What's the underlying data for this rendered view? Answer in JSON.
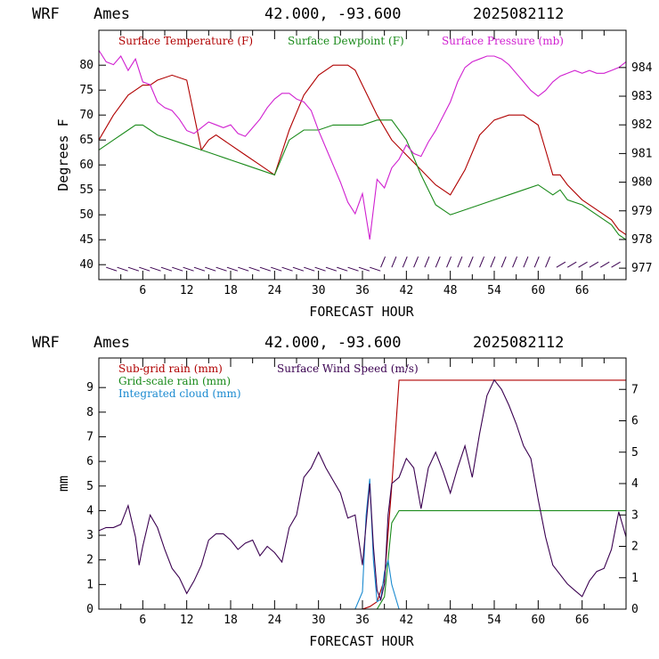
{
  "charts": [
    {
      "header": {
        "model": "WRF",
        "site": "Ames",
        "coords": "42.000, -93.600",
        "run": "2025082112"
      },
      "xlabel": "FORECAST HOUR",
      "ylabel": "Degrees F",
      "x_ticks": [
        "6",
        "12",
        "18",
        "24",
        "30",
        "36",
        "42",
        "48",
        "54",
        "60",
        "66"
      ],
      "y_left_ticks": [
        "40",
        "45",
        "50",
        "55",
        "60",
        "65",
        "70",
        "75",
        "80"
      ],
      "y_right_ticks": [
        "977",
        "978",
        "979",
        "980",
        "981",
        "982",
        "983",
        "984"
      ],
      "legend": [
        {
          "label": "Surface Temperature (F)",
          "color": "#b00000"
        },
        {
          "label": "Surface Dewpoint (F)",
          "color": "#1a8a1a"
        },
        {
          "label": "Surface Pressure (mb)",
          "color": "#d020d0"
        }
      ]
    },
    {
      "header": {
        "model": "WRF",
        "site": "Ames",
        "coords": "42.000, -93.600",
        "run": "2025082112"
      },
      "xlabel": "FORECAST HOUR",
      "ylabel": "mm",
      "x_ticks": [
        "6",
        "12",
        "18",
        "24",
        "30",
        "36",
        "42",
        "48",
        "54",
        "60",
        "66"
      ],
      "y_left_ticks": [
        "0",
        "1",
        "2",
        "3",
        "4",
        "5",
        "6",
        "7",
        "8",
        "9"
      ],
      "y_right_ticks": [
        "0",
        "1",
        "2",
        "3",
        "4",
        "5",
        "6",
        "7"
      ],
      "legend": [
        {
          "label": "Sub-grid rain (mm)",
          "color": "#b00000"
        },
        {
          "label": "Surface Wind Speed (m/s)",
          "color": "#3a0050"
        },
        {
          "label": "Grid-scale rain (mm)",
          "color": "#1a8a1a"
        },
        {
          "label": "Integrated cloud (mm)",
          "color": "#1a8ad0"
        }
      ]
    }
  ],
  "chart_data": [
    {
      "type": "line",
      "xlim": [
        0,
        72
      ],
      "ylim": [
        37,
        87
      ],
      "y2lim": [
        976.6,
        985.3
      ],
      "series": [
        {
          "name": "Surface Temperature (F)",
          "color": "#b00000",
          "axis": "left",
          "x": [
            0,
            2,
            4,
            5,
            6,
            7,
            8,
            10,
            12,
            13,
            14,
            15,
            16,
            18,
            20,
            22,
            24,
            26,
            28,
            30,
            32,
            34,
            35,
            36,
            38,
            40,
            42,
            44,
            46,
            48,
            50,
            52,
            54,
            56,
            58,
            60,
            61,
            62,
            63,
            64,
            66,
            68,
            70,
            71,
            72
          ],
          "y": [
            65,
            70,
            74,
            75,
            76,
            76,
            77,
            78,
            77,
            70,
            63,
            65,
            66,
            64,
            62,
            60,
            58,
            67,
            74,
            78,
            80,
            80,
            79,
            76,
            70,
            65,
            62,
            59,
            56,
            54,
            59,
            66,
            69,
            70,
            70,
            68,
            63,
            58,
            58,
            56,
            53,
            51,
            49,
            47,
            46
          ]
        },
        {
          "name": "Surface Dewpoint (F)",
          "color": "#1a8a1a",
          "axis": "left",
          "x": [
            0,
            2,
            4,
            5,
            6,
            7,
            8,
            10,
            12,
            14,
            16,
            18,
            20,
            22,
            24,
            26,
            28,
            30,
            32,
            34,
            36,
            38,
            40,
            42,
            44,
            46,
            48,
            50,
            52,
            54,
            56,
            58,
            60,
            61,
            62,
            63,
            64,
            66,
            68,
            70,
            71,
            72
          ],
          "y": [
            63,
            65,
            67,
            68,
            68,
            67,
            66,
            65,
            64,
            63,
            62,
            61,
            60,
            59,
            58,
            65,
            67,
            67,
            68,
            68,
            68,
            69,
            69,
            65,
            58,
            52,
            50,
            51,
            52,
            53,
            54,
            55,
            56,
            55,
            54,
            55,
            53,
            52,
            50,
            48,
            46,
            45
          ]
        },
        {
          "name": "Surface Pressure (mb)",
          "color": "#d020d0",
          "axis": "right",
          "x": [
            0,
            1,
            2,
            3,
            4,
            5,
            6,
            7,
            8,
            9,
            10,
            11,
            12,
            13,
            14,
            15,
            16,
            17,
            18,
            19,
            20,
            21,
            22,
            23,
            24,
            25,
            26,
            27,
            28,
            29,
            30,
            31,
            32,
            33,
            34,
            35,
            36,
            37,
            38,
            39,
            40,
            41,
            42,
            43,
            44,
            45,
            46,
            47,
            48,
            49,
            50,
            51,
            52,
            53,
            54,
            55,
            56,
            57,
            58,
            59,
            60,
            61,
            62,
            63,
            64,
            65,
            66,
            67,
            68,
            69,
            70,
            71,
            72
          ],
          "y": [
            984.6,
            984.2,
            984.1,
            984.4,
            983.9,
            984.3,
            983.5,
            983.4,
            982.8,
            982.6,
            982.5,
            982.2,
            981.8,
            981.7,
            981.9,
            982.1,
            982.0,
            981.9,
            982.0,
            981.7,
            981.6,
            981.9,
            982.2,
            982.6,
            982.9,
            983.1,
            983.1,
            982.9,
            982.8,
            982.5,
            981.8,
            981.2,
            980.6,
            980.0,
            979.3,
            978.9,
            979.6,
            978.0,
            980.1,
            979.8,
            980.5,
            980.8,
            981.3,
            981.0,
            980.9,
            981.4,
            981.8,
            982.3,
            982.8,
            983.5,
            984.0,
            984.2,
            984.3,
            984.4,
            984.4,
            984.3,
            984.1,
            983.8,
            983.5,
            983.2,
            983.0,
            983.2,
            983.5,
            983.7,
            983.8,
            983.9,
            983.8,
            983.9,
            983.8,
            983.8,
            983.9,
            984.0,
            984.2
          ]
        }
      ],
      "wind_barbs": {
        "x_start": 1,
        "x_step": 1.5,
        "count": 47
      }
    },
    {
      "type": "line",
      "xlim": [
        0,
        72
      ],
      "ylim": [
        0,
        10.2
      ],
      "y2lim": [
        0,
        8.0
      ],
      "series": [
        {
          "name": "Sub-grid rain (mm)",
          "color": "#b00000",
          "axis": "left",
          "x": [
            0,
            36,
            37,
            38,
            39,
            40,
            41,
            72
          ],
          "y": [
            0,
            0,
            0.1,
            0.3,
            1.2,
            5.0,
            9.3,
            9.3
          ]
        },
        {
          "name": "Grid-scale rain (mm)",
          "color": "#1a8a1a",
          "axis": "left",
          "x": [
            0,
            38,
            39,
            40,
            41,
            72
          ],
          "y": [
            0,
            0,
            0.5,
            3.5,
            4.0,
            4.0
          ]
        },
        {
          "name": "Integrated cloud (mm)",
          "color": "#1a8ad0",
          "axis": "left",
          "x": [
            0,
            35,
            36,
            36.5,
            37,
            37.5,
            38,
            38.5,
            39,
            39.5,
            40,
            41,
            72
          ],
          "y": [
            0,
            0,
            0.7,
            3.8,
            5.3,
            2.0,
            0.3,
            0.4,
            1.5,
            2.0,
            1.0,
            0,
            0
          ]
        },
        {
          "name": "Surface Wind Speed (m/s)",
          "color": "#3a0050",
          "axis": "right",
          "x": [
            0,
            1,
            2,
            3,
            4,
            5,
            5.5,
            6,
            7,
            8,
            9,
            10,
            11,
            12,
            13,
            14,
            15,
            16,
            17,
            18,
            19,
            20,
            21,
            22,
            23,
            24,
            25,
            26,
            27,
            28,
            29,
            30,
            31,
            32,
            33,
            34,
            35,
            36,
            37,
            37.5,
            38,
            38.5,
            39,
            39.5,
            40,
            41,
            42,
            43,
            44,
            45,
            46,
            47,
            48,
            49,
            50,
            51,
            52,
            53,
            54,
            55,
            56,
            57,
            58,
            59,
            60,
            61,
            62,
            63,
            64,
            65,
            66,
            67,
            68,
            69,
            70,
            71,
            72
          ],
          "y": [
            2.5,
            2.6,
            2.6,
            2.7,
            3.3,
            2.3,
            1.4,
            2.0,
            3.0,
            2.6,
            1.9,
            1.3,
            1.0,
            0.5,
            0.9,
            1.4,
            2.2,
            2.4,
            2.4,
            2.2,
            1.9,
            2.1,
            2.2,
            1.7,
            2.0,
            1.8,
            1.5,
            2.6,
            3.0,
            4.2,
            4.5,
            5.0,
            4.5,
            4.1,
            3.7,
            2.9,
            3.0,
            1.4,
            4.0,
            2.0,
            0.6,
            0.3,
            0.8,
            3.0,
            4.0,
            4.2,
            4.8,
            4.5,
            3.2,
            4.5,
            5.0,
            4.4,
            3.7,
            4.5,
            5.2,
            4.2,
            5.6,
            6.8,
            7.3,
            7.0,
            6.5,
            5.9,
            5.2,
            4.8,
            3.5,
            2.3,
            1.4,
            1.1,
            0.8,
            0.6,
            0.4,
            0.9,
            1.2,
            1.3,
            1.9,
            3.1,
            2.3
          ]
        }
      ]
    }
  ]
}
